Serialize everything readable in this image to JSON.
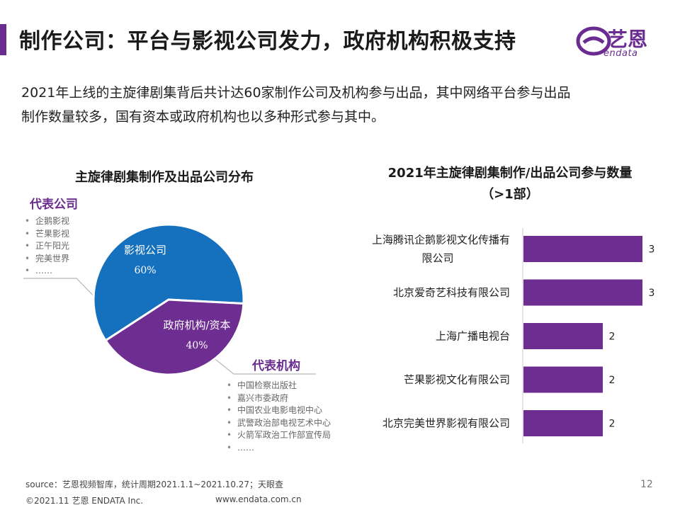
{
  "header": {
    "title": "制作公司：平台与影视公司发力，政府机构积极支持",
    "logo_cn": "艺恩",
    "logo_en": "endata"
  },
  "summary": {
    "line1": "2021年上线的主旋律剧集背后共计达60家制作公司及机构参与出品，其中网络平台参与出品",
    "line2": "制作数量较多，国有资本或政府机构也以多种形式参与其中。"
  },
  "colors": {
    "accent": "#6b2c91",
    "blue": "#1570bd",
    "purple": "#6d2d91"
  },
  "chart_data": [
    {
      "type": "pie",
      "title": "主旋律剧集制作及出品公司分布",
      "slices": [
        {
          "label": "影视公司",
          "value": 60,
          "value_label": "60%",
          "color": "#1570bd"
        },
        {
          "label": "政府机构/资本",
          "value": 40,
          "value_label": "40%",
          "color": "#6d2d91"
        }
      ],
      "groups": [
        {
          "heading": "代表公司",
          "items": [
            "企鹅影视",
            "芒果影视",
            "正午阳光",
            "完美世界",
            "……"
          ]
        },
        {
          "heading": "代表机构",
          "items": [
            "中国检察出版社",
            "嘉兴市委政府",
            "中国农业电影电视中心",
            "武警政治部电视艺术中心",
            "火箭军政治工作部宣传局",
            "……"
          ]
        }
      ]
    },
    {
      "type": "bar",
      "orientation": "horizontal",
      "title_line1": "2021年主旋律剧集制作/出品公司参与数量",
      "title_line2": "（>1部）",
      "categories": [
        [
          "上海腾讯企鹅影视文化传播有",
          "限公司"
        ],
        [
          "北京爱奇艺科技有限公司"
        ],
        [
          "上海广播电视台"
        ],
        [
          "芒果影视文化有限公司"
        ],
        [
          "北京完美世界影视有限公司"
        ]
      ],
      "values": [
        3,
        3,
        2,
        2,
        2
      ],
      "color": "#6d2d91"
    }
  ],
  "footer": {
    "source": "source：艺恩视频智库，统计周期2021.1.1~2021.10.27；天眼查",
    "page": "12",
    "copyright": "©2021.11 艺恩 ENDATA Inc.",
    "website": "www.endata.com.cn"
  }
}
